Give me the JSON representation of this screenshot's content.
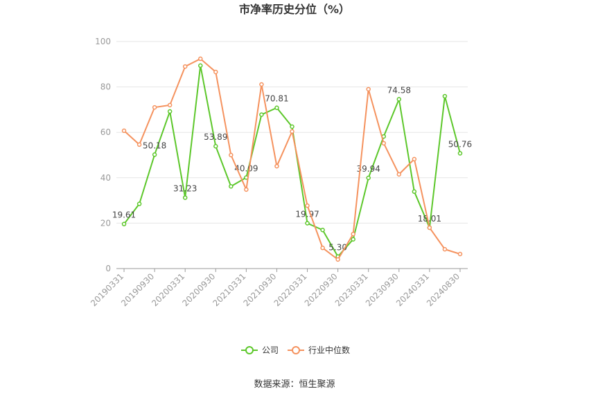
{
  "chart_data": {
    "type": "line",
    "title": "市净率历史分位（%）",
    "categories": [
      "20190331",
      null,
      "20190930",
      null,
      "20200331",
      null,
      "20200930",
      null,
      "20210331",
      null,
      "20210930",
      null,
      "20220331",
      null,
      "20220930",
      null,
      "20230331",
      null,
      "20230930",
      null,
      "20240331",
      null,
      "20240830"
    ],
    "series": [
      {
        "name": "公司",
        "color": "#5cc72a",
        "values": [
          19.61,
          28.5,
          50.18,
          69.2,
          31.23,
          89.4,
          53.89,
          36.2,
          40.09,
          67.8,
          70.81,
          62.5,
          19.97,
          17.0,
          5.3,
          12.9,
          39.94,
          58.2,
          74.58,
          33.9,
          18.01,
          75.9,
          50.76
        ],
        "value_labels": [
          "19.61",
          null,
          "50.18",
          null,
          "31.23",
          null,
          "53.89",
          null,
          "40.09",
          null,
          "70.81",
          null,
          "19.97",
          null,
          "5.30",
          null,
          "39.94",
          null,
          "74.58",
          null,
          "18.01",
          null,
          "50.76"
        ]
      },
      {
        "name": "行业中位数",
        "color": "#f5925e",
        "values": [
          60.7,
          54.6,
          71.0,
          72.0,
          89.0,
          92.4,
          86.6,
          50.0,
          34.8,
          81.1,
          45.1,
          60.4,
          27.7,
          9.1,
          4.0,
          15.2,
          79.0,
          55.2,
          41.5,
          48.2,
          18.0,
          8.5,
          6.4
        ]
      }
    ],
    "ylim": [
      0,
      100
    ],
    "yticks": [
      0,
      20,
      40,
      60,
      80,
      100
    ],
    "grid": true,
    "source": "数据来源：恒生聚源"
  }
}
